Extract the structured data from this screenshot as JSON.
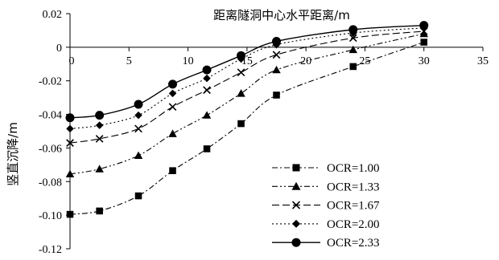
{
  "chart_data": {
    "type": "line",
    "xlabel": "距离隧洞中心水平距离/m",
    "ylabel": "竖直沉降/m",
    "xlim": [
      0,
      35
    ],
    "ylim": [
      -0.12,
      0.02
    ],
    "x_ticks": [
      "0",
      "5",
      "10",
      "15",
      "20",
      "25",
      "30",
      "35"
    ],
    "y_ticks": [
      "0.02",
      "0",
      "-0.02",
      "-0.04",
      "-0.06",
      "-0.08",
      "-0.10",
      "-0.12"
    ],
    "grid": false,
    "legend_position": "bottom-right",
    "x": [
      0,
      2.5,
      5.8,
      8.7,
      11.6,
      14.5,
      17.5,
      24,
      30
    ],
    "series": [
      {
        "name": "OCR=1.00",
        "marker": "square",
        "dash": "dash-dot",
        "color": "#000000",
        "values": [
          -0.0995,
          -0.0975,
          -0.0885,
          -0.0735,
          -0.0605,
          -0.0455,
          -0.0285,
          -0.0115,
          0.003
        ]
      },
      {
        "name": "OCR=1.33",
        "marker": "triangle",
        "dash": "dash-dot-dot",
        "color": "#000000",
        "values": [
          -0.0755,
          -0.0725,
          -0.0645,
          -0.0515,
          -0.0405,
          -0.0275,
          -0.0135,
          -0.0015,
          0.008
        ]
      },
      {
        "name": "OCR=1.67",
        "marker": "cross",
        "dash": "long-dash",
        "color": "#000000",
        "values": [
          -0.057,
          -0.0545,
          -0.0485,
          -0.0355,
          -0.0255,
          -0.015,
          -0.0045,
          0.0055,
          0.0095
        ]
      },
      {
        "name": "OCR=2.00",
        "marker": "diamond",
        "dash": "dotted",
        "color": "#000000",
        "values": [
          -0.0485,
          -0.0465,
          -0.0405,
          -0.0275,
          -0.0185,
          -0.007,
          0.0015,
          0.0085,
          0.0115
        ]
      },
      {
        "name": "OCR=2.33",
        "marker": "circle",
        "dash": "solid",
        "color": "#000000",
        "values": [
          -0.042,
          -0.0405,
          -0.034,
          -0.022,
          -0.0135,
          -0.005,
          0.0035,
          0.0105,
          0.013
        ]
      }
    ]
  }
}
